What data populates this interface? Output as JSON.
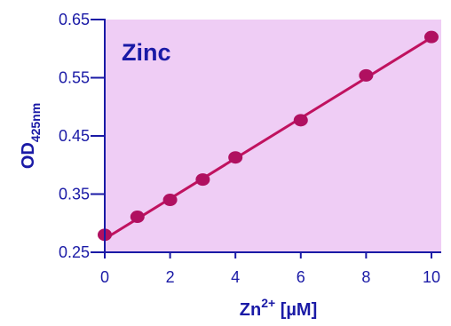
{
  "chart_data": {
    "type": "scatter",
    "title": "Zinc",
    "xlabel": {
      "base": "Zn",
      "sup": "2+",
      "rest": " [µM]"
    },
    "ylabel": {
      "base": "OD",
      "sub": "425nm"
    },
    "xlim": [
      0,
      10.3
    ],
    "ylim": [
      0.25,
      0.65
    ],
    "xticks": [
      "0",
      "2",
      "4",
      "6",
      "8",
      "10"
    ],
    "yticks": [
      "0.25",
      "0.35",
      "0.45",
      "0.55",
      "0.65"
    ],
    "points": [
      {
        "x": 0,
        "y": 0.28
      },
      {
        "x": 1,
        "y": 0.311
      },
      {
        "x": 2,
        "y": 0.34
      },
      {
        "x": 3,
        "y": 0.375
      },
      {
        "x": 4,
        "y": 0.413
      },
      {
        "x": 6,
        "y": 0.477
      },
      {
        "x": 8,
        "y": 0.554
      },
      {
        "x": 10,
        "y": 0.62
      }
    ],
    "fit_line": {
      "x": [
        0,
        10
      ],
      "y": [
        0.273,
        0.619
      ]
    },
    "grid": false,
    "colors": {
      "plot_background": "#efcdf5",
      "marker": "#b01060",
      "line": "#c0125f",
      "axis": "#1a1aa6",
      "text": "#1a1aa6"
    }
  }
}
